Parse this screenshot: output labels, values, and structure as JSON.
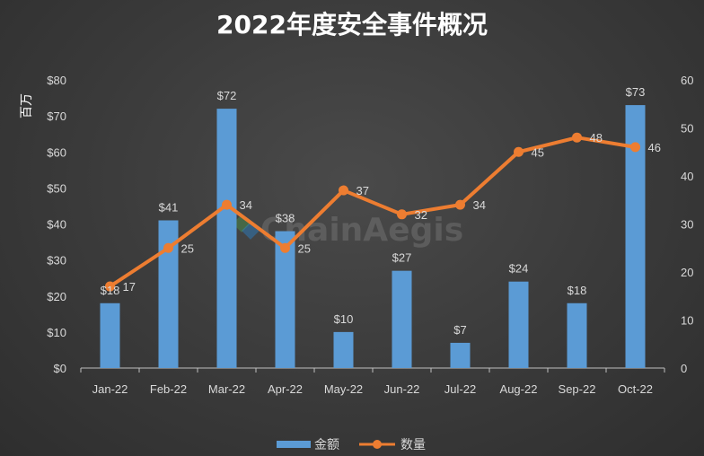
{
  "chart_data": {
    "type": "bar",
    "title": "2022年度安全事件概况",
    "ylabel_left": "百万",
    "categories": [
      "Jan-22",
      "Feb-22",
      "Mar-22",
      "Apr-22",
      "May-22",
      "Jun-22",
      "Jul-22",
      "Aug-22",
      "Sep-22",
      "Oct-22"
    ],
    "series": [
      {
        "name": "金额",
        "type": "bar",
        "axis": "left",
        "values": [
          18,
          41,
          72,
          38,
          10,
          27,
          7,
          24,
          18,
          73
        ],
        "label_prefix": "$",
        "color": "#5b9bd5"
      },
      {
        "name": "数量",
        "type": "line",
        "axis": "right",
        "values": [
          17,
          25,
          34,
          25,
          37,
          32,
          34,
          45,
          48,
          46
        ],
        "color": "#ed7d31"
      }
    ],
    "y_left": {
      "range": [
        0,
        80
      ],
      "ticks": [
        "$0",
        "$10",
        "$20",
        "$30",
        "$40",
        "$50",
        "$60",
        "$70",
        "$80"
      ]
    },
    "y_right": {
      "range": [
        0,
        60
      ],
      "ticks": [
        "0",
        "10",
        "20",
        "30",
        "40",
        "50",
        "60"
      ]
    },
    "grid": false,
    "legend_position": "bottom",
    "watermark": "ChainAegis"
  }
}
